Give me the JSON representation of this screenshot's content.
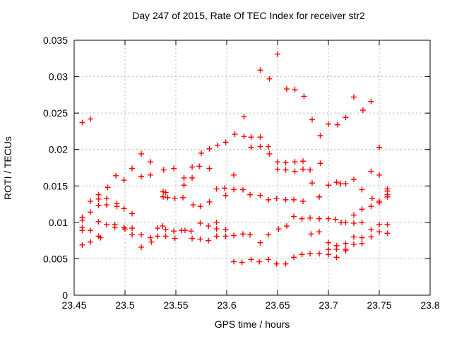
{
  "chart_data": {
    "type": "scatter",
    "title": "Day 247 of 2015, Rate Of TEC Index for receiver str2",
    "xlabel": "GPS time / hours",
    "ylabel": "ROTI / TECUs",
    "xlim": [
      23.45,
      23.8
    ],
    "ylim": [
      0,
      0.035
    ],
    "xtick_values": [
      23.45,
      23.5,
      23.55,
      23.6,
      23.65,
      23.7,
      23.75,
      23.8
    ],
    "xtick_labels": [
      "23.45",
      "23.5",
      "23.55",
      "23.6",
      "23.65",
      "23.7",
      "23.75",
      "23.8"
    ],
    "ytick_values": [
      0,
      0.005,
      0.01,
      0.015,
      0.02,
      0.025,
      0.03,
      0.035
    ],
    "ytick_labels": [
      "0",
      "0.005",
      "0.01",
      "0.015",
      "0.02",
      "0.025",
      "0.03",
      "0.035"
    ],
    "grid": true,
    "legend_position": "none",
    "marker_style": "plus",
    "colors": {
      "marker": "#ff0000",
      "grid": "#b0b0b0",
      "axis": "#000000",
      "background": "#ffffff"
    },
    "points": [
      [
        23.458,
        0.0237
      ],
      [
        23.466,
        0.0242
      ],
      [
        23.516,
        0.0194
      ],
      [
        23.525,
        0.0183
      ],
      [
        23.617,
        0.0245
      ],
      [
        23.608,
        0.0221
      ],
      [
        23.617,
        0.0218
      ],
      [
        23.624,
        0.0217
      ],
      [
        23.599,
        0.021
      ],
      [
        23.591,
        0.0206
      ],
      [
        23.583,
        0.0201
      ],
      [
        23.575,
        0.0195
      ],
      [
        23.624,
        0.0203
      ],
      [
        23.566,
        0.0176
      ],
      [
        23.573,
        0.0177
      ],
      [
        23.583,
        0.0174
      ],
      [
        23.548,
        0.0174
      ],
      [
        23.65,
        0.0331
      ],
      [
        23.633,
        0.0309
      ],
      [
        23.642,
        0.0297
      ],
      [
        23.659,
        0.0283
      ],
      [
        23.667,
        0.0282
      ],
      [
        23.676,
        0.0273
      ],
      [
        23.684,
        0.0241
      ],
      [
        23.7,
        0.0235
      ],
      [
        23.709,
        0.0234
      ],
      [
        23.692,
        0.0219
      ],
      [
        23.633,
        0.0217
      ],
      [
        23.633,
        0.0204
      ],
      [
        23.641,
        0.0204
      ],
      [
        23.642,
        0.0194
      ],
      [
        23.65,
        0.0183
      ],
      [
        23.658,
        0.0182
      ],
      [
        23.667,
        0.0183
      ],
      [
        23.675,
        0.0184
      ],
      [
        23.692,
        0.0181
      ],
      [
        23.725,
        0.0272
      ],
      [
        23.742,
        0.0266
      ],
      [
        23.734,
        0.0254
      ],
      [
        23.717,
        0.0244
      ],
      [
        23.75,
        0.0203
      ],
      [
        23.491,
        0.0164
      ],
      [
        23.507,
        0.0174
      ],
      [
        23.499,
        0.0158
      ],
      [
        23.516,
        0.0163
      ],
      [
        23.525,
        0.0165
      ],
      [
        23.538,
        0.0172
      ],
      [
        23.483,
        0.0148
      ],
      [
        23.474,
        0.0138
      ],
      [
        23.474,
        0.0132
      ],
      [
        23.482,
        0.0133
      ],
      [
        23.466,
        0.0129
      ],
      [
        23.482,
        0.0124
      ],
      [
        23.474,
        0.0123
      ],
      [
        23.492,
        0.0126
      ],
      [
        23.492,
        0.0122
      ],
      [
        23.499,
        0.0119
      ],
      [
        23.466,
        0.0114
      ],
      [
        23.507,
        0.0112
      ],
      [
        23.458,
        0.0107
      ],
      [
        23.458,
        0.0103
      ],
      [
        23.474,
        0.0101
      ],
      [
        23.482,
        0.0097
      ],
      [
        23.49,
        0.0097
      ],
      [
        23.49,
        0.0093
      ],
      [
        23.499,
        0.0093
      ],
      [
        23.5,
        0.0091
      ],
      [
        23.458,
        0.0093
      ],
      [
        23.458,
        0.0089
      ],
      [
        23.466,
        0.0089
      ],
      [
        23.507,
        0.0092
      ],
      [
        23.507,
        0.0083
      ],
      [
        23.516,
        0.0083
      ],
      [
        23.474,
        0.0081
      ],
      [
        23.476,
        0.0079
      ],
      [
        23.525,
        0.0079
      ],
      [
        23.526,
        0.0073
      ],
      [
        23.466,
        0.0073
      ],
      [
        23.458,
        0.0069
      ],
      [
        23.516,
        0.0066
      ],
      [
        23.532,
        0.0092
      ],
      [
        23.532,
        0.0081
      ],
      [
        23.537,
        0.0095
      ],
      [
        23.607,
        0.0165
      ],
      [
        23.558,
        0.0161
      ],
      [
        23.566,
        0.0161
      ],
      [
        23.558,
        0.0151
      ],
      [
        23.5375,
        0.0142
      ],
      [
        23.54,
        0.0141
      ],
      [
        23.5375,
        0.0135
      ],
      [
        23.542,
        0.0134
      ],
      [
        23.549,
        0.0133
      ],
      [
        23.557,
        0.0134
      ],
      [
        23.583,
        0.0128
      ],
      [
        23.567,
        0.0124
      ],
      [
        23.574,
        0.0122
      ],
      [
        23.59,
        0.0146
      ],
      [
        23.598,
        0.0147
      ],
      [
        23.599,
        0.0137
      ],
      [
        23.607,
        0.0145
      ],
      [
        23.616,
        0.0145
      ],
      [
        23.623,
        0.0138
      ],
      [
        23.574,
        0.0099
      ],
      [
        23.582,
        0.0095
      ],
      [
        23.59,
        0.01
      ],
      [
        23.59,
        0.0091
      ],
      [
        23.54,
        0.009
      ],
      [
        23.548,
        0.0088
      ],
      [
        23.5555,
        0.0089
      ],
      [
        23.559,
        0.0089
      ],
      [
        23.565,
        0.0088
      ],
      [
        23.54,
        0.0081
      ],
      [
        23.549,
        0.0078
      ],
      [
        23.566,
        0.0078
      ],
      [
        23.574,
        0.0077
      ],
      [
        23.582,
        0.0075
      ],
      [
        23.59,
        0.0081
      ],
      [
        23.599,
        0.009
      ],
      [
        23.599,
        0.0081
      ],
      [
        23.607,
        0.0082
      ],
      [
        23.616,
        0.0084
      ],
      [
        23.623,
        0.0083
      ],
      [
        23.607,
        0.0046
      ],
      [
        23.615,
        0.0045
      ],
      [
        23.624,
        0.0049
      ],
      [
        23.65,
        0.0173
      ],
      [
        23.658,
        0.0172
      ],
      [
        23.667,
        0.017
      ],
      [
        23.675,
        0.0173
      ],
      [
        23.682,
        0.0172
      ],
      [
        23.684,
        0.0154
      ],
      [
        23.7,
        0.0151
      ],
      [
        23.708,
        0.0155
      ],
      [
        23.633,
        0.0137
      ],
      [
        23.641,
        0.0131
      ],
      [
        23.649,
        0.0133
      ],
      [
        23.658,
        0.0131
      ],
      [
        23.666,
        0.0131
      ],
      [
        23.675,
        0.0129
      ],
      [
        23.691,
        0.0135
      ],
      [
        23.666,
        0.0108
      ],
      [
        23.674,
        0.0105
      ],
      [
        23.682,
        0.0106
      ],
      [
        23.691,
        0.0105
      ],
      [
        23.7,
        0.0105
      ],
      [
        23.707,
        0.0104
      ],
      [
        23.659,
        0.0095
      ],
      [
        23.651,
        0.0091
      ],
      [
        23.683,
        0.0084
      ],
      [
        23.691,
        0.0087
      ],
      [
        23.641,
        0.0083
      ],
      [
        23.633,
        0.0072
      ],
      [
        23.7,
        0.0072
      ],
      [
        23.708,
        0.0068
      ],
      [
        23.7,
        0.0063
      ],
      [
        23.708,
        0.0063
      ],
      [
        23.7,
        0.0056
      ],
      [
        23.708,
        0.0052
      ],
      [
        23.674,
        0.0056
      ],
      [
        23.682,
        0.0057
      ],
      [
        23.691,
        0.0057
      ],
      [
        23.666,
        0.0052
      ],
      [
        23.632,
        0.0046
      ],
      [
        23.641,
        0.0049
      ],
      [
        23.649,
        0.0043
      ],
      [
        23.658,
        0.0043
      ],
      [
        23.742,
        0.017
      ],
      [
        23.75,
        0.0165
      ],
      [
        23.725,
        0.0159
      ],
      [
        23.717,
        0.0153
      ],
      [
        23.712,
        0.0153
      ],
      [
        23.733,
        0.0145
      ],
      [
        23.758,
        0.0146
      ],
      [
        23.758,
        0.0143
      ],
      [
        23.758,
        0.0138
      ],
      [
        23.758,
        0.0135
      ],
      [
        23.743,
        0.0133
      ],
      [
        23.75,
        0.0129
      ],
      [
        23.75,
        0.0127
      ],
      [
        23.742,
        0.0122
      ],
      [
        23.733,
        0.0118
      ],
      [
        23.725,
        0.011
      ],
      [
        23.717,
        0.01
      ],
      [
        23.7125,
        0.01
      ],
      [
        23.725,
        0.0099
      ],
      [
        23.733,
        0.01
      ],
      [
        23.75,
        0.0097
      ],
      [
        23.758,
        0.0097
      ],
      [
        23.742,
        0.009
      ],
      [
        23.75,
        0.0087
      ],
      [
        23.758,
        0.0085
      ],
      [
        23.742,
        0.008
      ],
      [
        23.725,
        0.008
      ],
      [
        23.733,
        0.0079
      ],
      [
        23.717,
        0.0071
      ],
      [
        23.725,
        0.007
      ],
      [
        23.733,
        0.0071
      ],
      [
        23.717,
        0.0063
      ],
      [
        23.717,
        0.0061
      ]
    ]
  }
}
